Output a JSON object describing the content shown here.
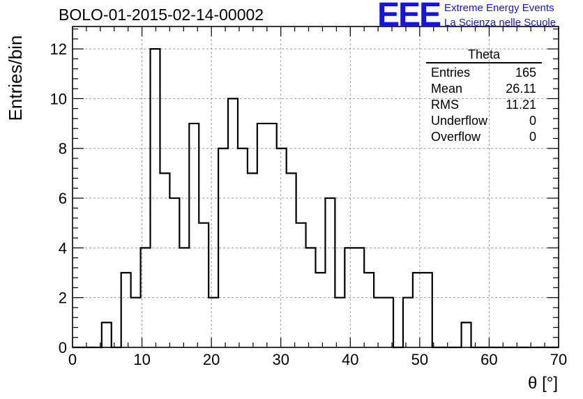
{
  "header": {
    "run_id": "BOLO-01-2015-02-14-00002",
    "logo_mark": "EEE",
    "logo_line1": "Extreme Energy Events",
    "logo_line2": "La Scienza nelle Scuole"
  },
  "stats": {
    "name": "Theta",
    "rows": [
      {
        "label": "Entries",
        "value": "165"
      },
      {
        "label": "Mean",
        "value": "26.11"
      },
      {
        "label": "RMS",
        "value": "11.21"
      },
      {
        "label": "Underflow",
        "value": "0"
      },
      {
        "label": "Overflow",
        "value": "0"
      }
    ]
  },
  "colors": {
    "line": "#000000",
    "grid": "#9a9a9a",
    "logo": "#1515e0"
  },
  "chart_data": {
    "type": "histogram",
    "title": "BOLO-01-2015-02-14-00002",
    "xlabel": "θ [°]",
    "ylabel": "Entries/bin",
    "xlim": [
      0,
      70
    ],
    "ylim": [
      0,
      12.9
    ],
    "grid": true,
    "x_ticks": [
      0,
      10,
      20,
      30,
      40,
      50,
      60,
      70
    ],
    "y_ticks": [
      0,
      2,
      4,
      6,
      8,
      10,
      12
    ],
    "bin_edges": [
      0,
      1.4,
      2.8,
      4.2,
      5.6,
      7.0,
      8.4,
      9.8,
      11.2,
      12.6,
      14.0,
      15.4,
      16.8,
      18.2,
      19.6,
      21.0,
      22.4,
      23.8,
      25.2,
      26.6,
      28.0,
      29.4,
      30.8,
      32.2,
      33.6,
      35.0,
      36.4,
      37.8,
      39.2,
      40.6,
      42.0,
      43.4,
      44.8,
      46.2,
      47.6,
      49.0,
      50.4,
      51.8,
      53.2,
      54.6,
      56.0,
      57.4,
      58.8,
      60.2,
      61.6,
      63.0,
      64.4,
      65.8,
      67.2,
      68.6,
      70.0
    ],
    "counts": [
      0,
      0,
      0,
      1,
      0,
      3,
      2,
      4,
      12,
      7,
      6,
      4,
      9,
      5,
      2,
      8,
      10,
      8,
      7,
      9,
      9,
      8,
      7,
      5,
      4,
      3,
      6,
      2,
      4,
      4,
      3,
      2,
      2,
      0,
      2,
      3,
      3,
      0,
      0,
      0,
      1,
      0,
      0,
      0,
      0,
      0,
      0,
      0,
      0,
      0
    ]
  }
}
